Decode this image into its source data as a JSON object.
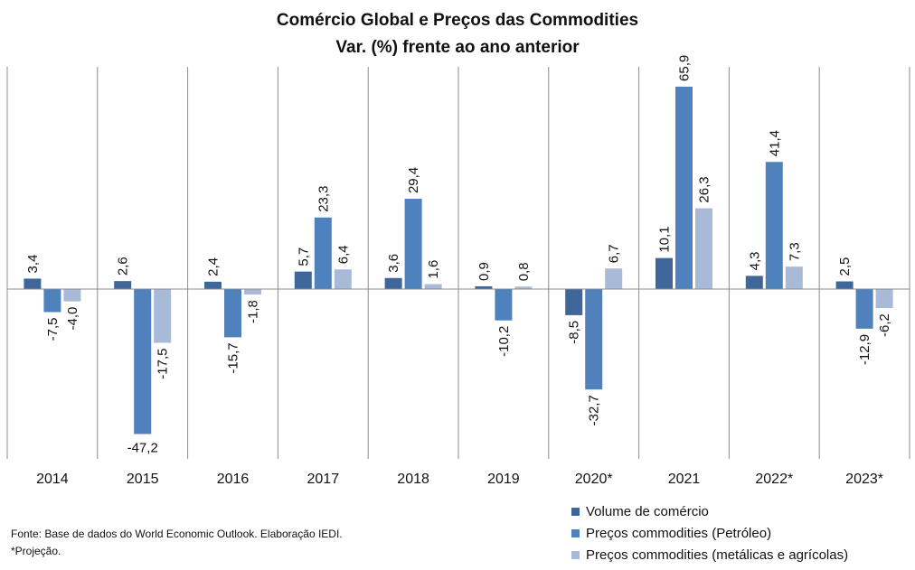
{
  "chart_data": {
    "type": "bar",
    "title": "Comércio Global e Preços das Commodities",
    "subtitle": "Var. (%) frente ao ano anterior",
    "categories": [
      "2014",
      "2015",
      "2016",
      "2017",
      "2018",
      "2019",
      "2020*",
      "2021",
      "2022*",
      "2023*"
    ],
    "series": [
      {
        "name": "Volume de comércio",
        "color": "#3F6699",
        "values": [
          3.4,
          2.6,
          2.4,
          5.7,
          3.6,
          0.9,
          -8.5,
          10.1,
          4.3,
          2.5
        ],
        "labels": [
          "3,4",
          "2,6",
          "2,4",
          "5,7",
          "3,6",
          "0,9",
          "-8,5",
          "10,1",
          "4,3",
          "2,5"
        ]
      },
      {
        "name": "Preços commodities (Petróleo)",
        "color": "#4F81BD",
        "values": [
          -7.5,
          -47.2,
          -15.7,
          23.3,
          29.4,
          -10.2,
          -32.7,
          65.9,
          41.4,
          -12.9
        ],
        "labels": [
          "-7,5",
          "-47,2",
          "-15,7",
          "23,3",
          "29,4",
          "-10,2",
          "-32,7",
          "65,9",
          "41,4",
          "-12,9"
        ]
      },
      {
        "name": "Preços commodities (metálicas e agrícolas)",
        "color": "#A9B9D8",
        "values": [
          -4.0,
          -17.5,
          -1.8,
          6.4,
          1.6,
          0.8,
          6.7,
          26.3,
          7.3,
          -6.2
        ],
        "labels": [
          "-4,0",
          "-17,5",
          "-1,8",
          "6,4",
          "1,6",
          "0,8",
          "6,7",
          "26,3",
          "7,3",
          "-6,2"
        ]
      }
    ],
    "ylim": [
      -53,
      71
    ],
    "legend_position": "bottom-right"
  },
  "notes": {
    "source": "Fonte: Base de dados do World Economic Outlook. Elaboração IEDI.",
    "projection": "*Projeção."
  }
}
